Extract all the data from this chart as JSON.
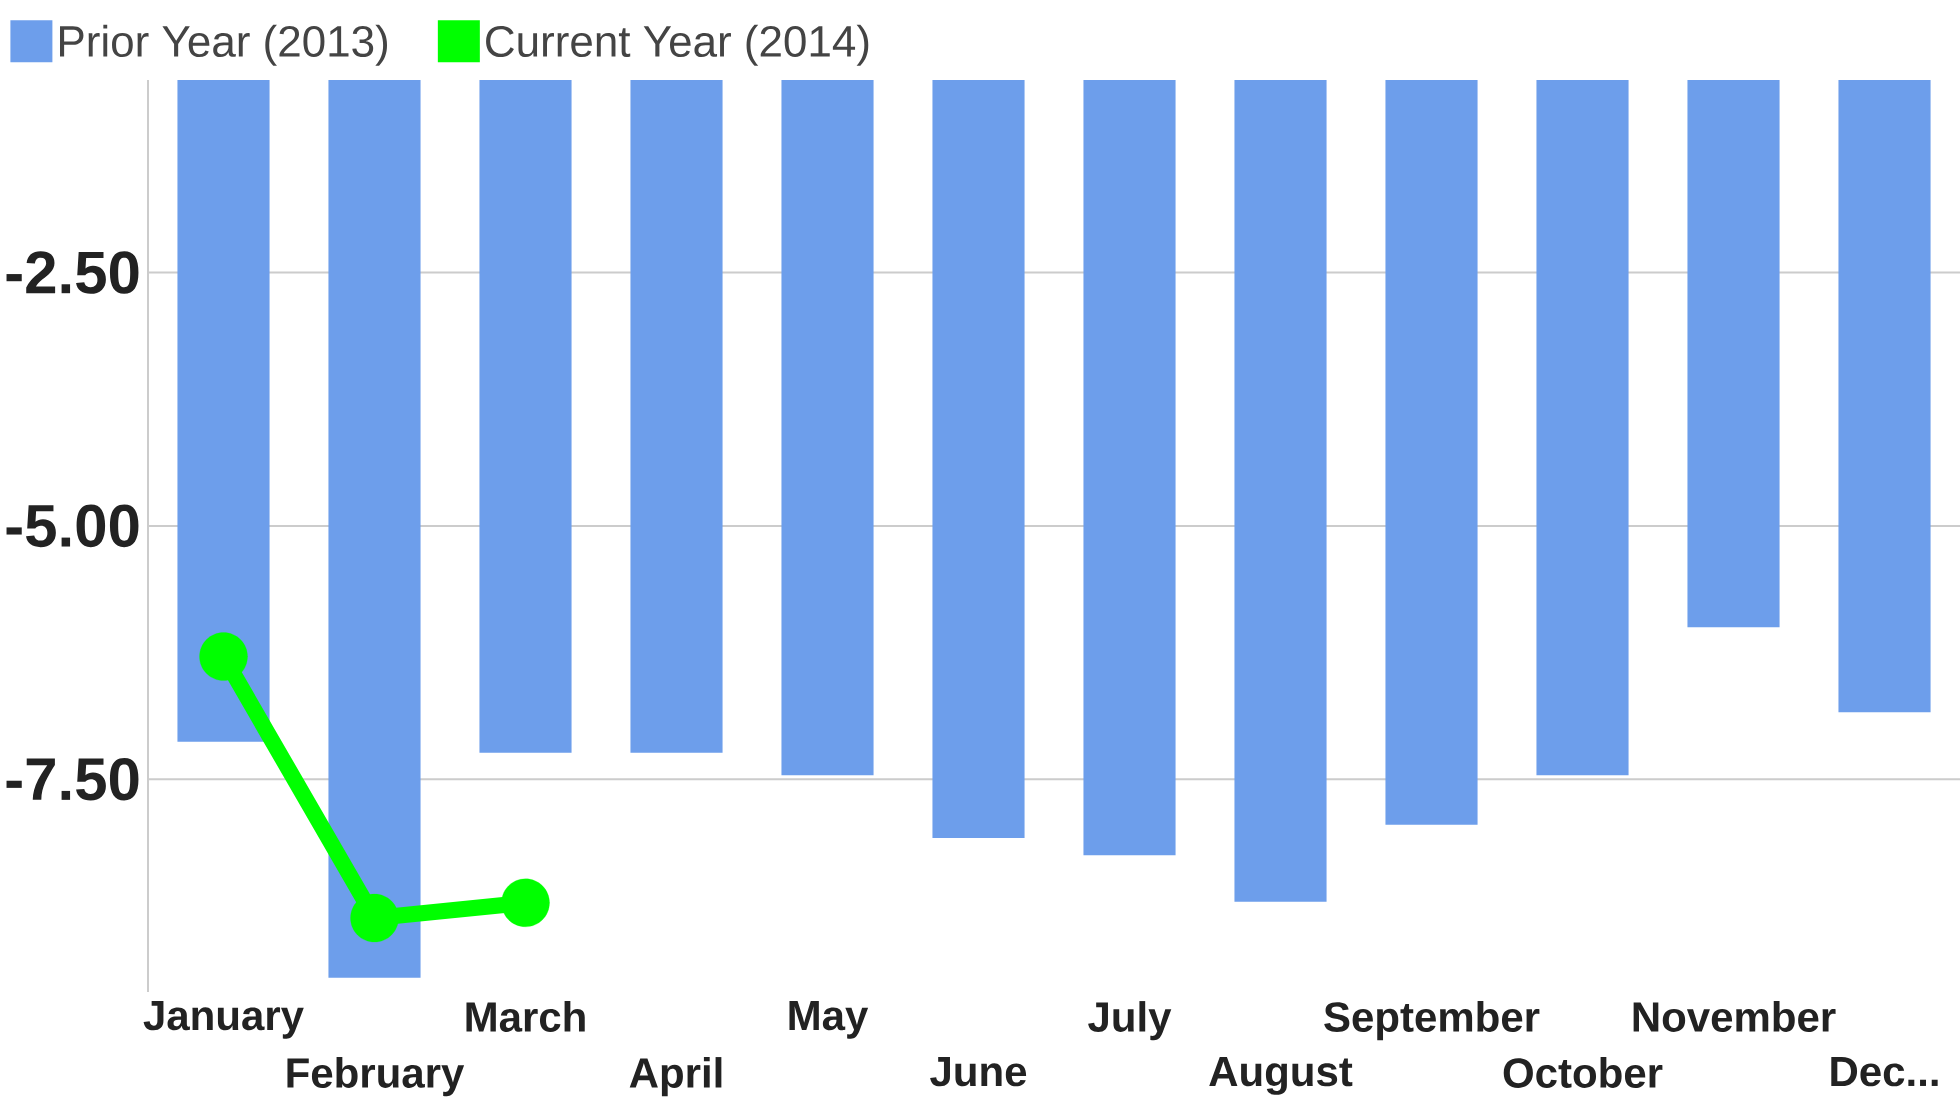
{
  "chart_data": {
    "type": "bar",
    "categories": [
      "January",
      "February",
      "March",
      "April",
      "May",
      "June",
      "July",
      "August",
      "September",
      "October",
      "November",
      "Dec..."
    ],
    "series": [
      {
        "name": "Prior Year (2013)",
        "color": "#6d9eeb",
        "values": [
          -7.13,
          -9.46,
          -7.24,
          -7.24,
          -7.46,
          -8.08,
          -8.25,
          -8.71,
          -7.95,
          -7.46,
          -6.0,
          -6.84
        ]
      },
      {
        "name": "Current Year (2014)",
        "type": "line",
        "color": "#00ff00",
        "values": [
          -6.29,
          -8.87,
          -8.72,
          null,
          null,
          null,
          null,
          null,
          null,
          null,
          null,
          null
        ]
      }
    ],
    "ylim": [
      -9.6,
      -0.6
    ],
    "yticks": [
      {
        "value": -7.5,
        "label": "-7.50"
      },
      {
        "value": -5,
        "label": "-5.00"
      },
      {
        "value": -2.5,
        "label": "-2.50"
      }
    ],
    "grid": "y",
    "legend": "top left",
    "marker": "circle",
    "line_style": "solid"
  }
}
